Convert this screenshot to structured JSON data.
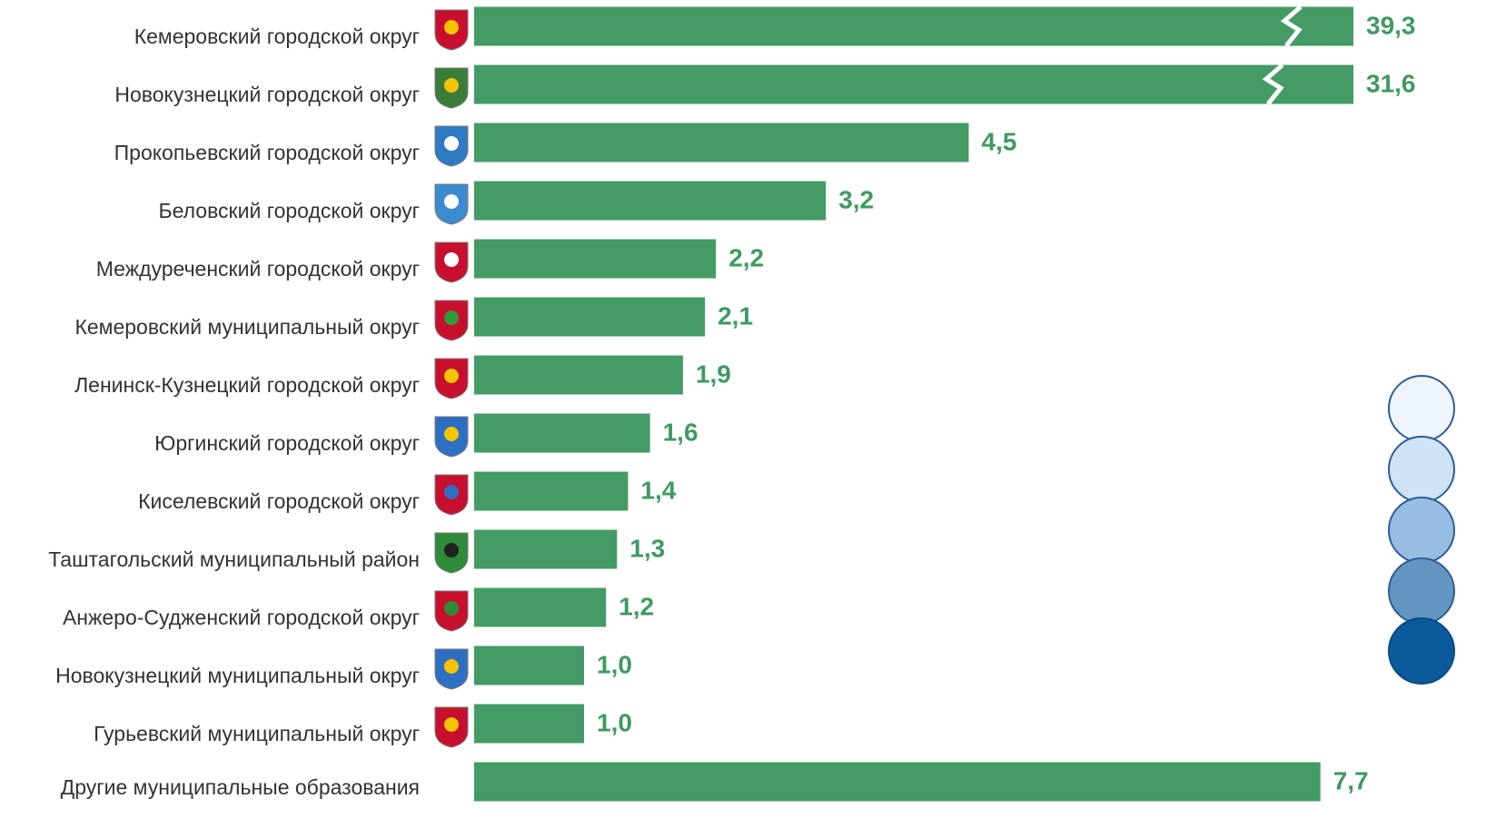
{
  "chart_data": {
    "type": "bar",
    "orientation": "horizontal",
    "color": "#449b65",
    "label_color": "#3f9a60",
    "categories": [
      "Кемеровский городской округ",
      "Новокузнецкий городской округ",
      "Прокопьевский городской округ",
      "Беловский городской округ",
      "Междуреченский городской округ",
      "Кемеровский муниципальный округ",
      "Ленинск-Кузнецкий городской округ",
      "Юргинский городской округ",
      "Киселевский городской округ",
      "Таштагольский муниципальный район",
      "Анжеро-Судженский городской округ",
      "Новокузнецкий муниципальный округ",
      "Гурьевский муниципальный округ",
      "Другие муниципальные образования"
    ],
    "values": [
      39.3,
      31.6,
      4.5,
      3.2,
      2.2,
      2.1,
      1.9,
      1.6,
      1.4,
      1.3,
      1.2,
      1.0,
      1.0,
      7.7
    ],
    "value_labels": [
      "39,3",
      "31,6",
      "4,5",
      "3,2",
      "2,2",
      "2,1",
      "1,9",
      "1,6",
      "1,4",
      "1,3",
      "1,2",
      "1,0",
      "1,0",
      "7,7"
    ],
    "xlim": [
      0,
      8
    ],
    "axis_break": true
  }
}
